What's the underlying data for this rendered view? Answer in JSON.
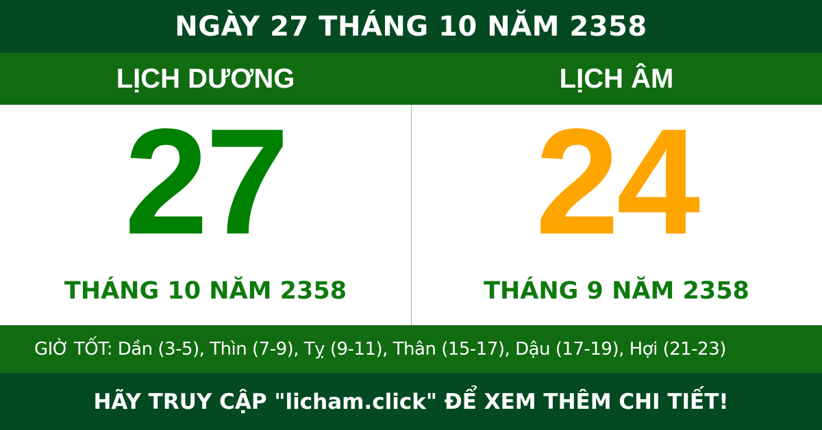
{
  "title": "NGÀY 27 THÁNG 10 NĂM 2358",
  "solar": {
    "label": "LỊCH DƯƠNG",
    "day": "27",
    "month_year": "THÁNG 10 NĂM 2358"
  },
  "lunar": {
    "label": "LỊCH ÂM",
    "day": "24",
    "month_year": "THÁNG 9 NĂM 2358"
  },
  "good_hours": "GIỜ TỐT: Dần (3-5), Thìn (7-9), Tỵ (9-11), Thân (15-17), Dậu (17-19), Hợi (21-23)",
  "footer": "HÃY TRUY CẬP \"licham.click\" ĐỂ XEM THÊM CHI TIẾT!",
  "colors": {
    "dark_green": "#034922",
    "green_band": "#116b11",
    "solar_day": "#008000",
    "lunar_day": "#FFA500",
    "month_text": "#0e7a0e"
  }
}
